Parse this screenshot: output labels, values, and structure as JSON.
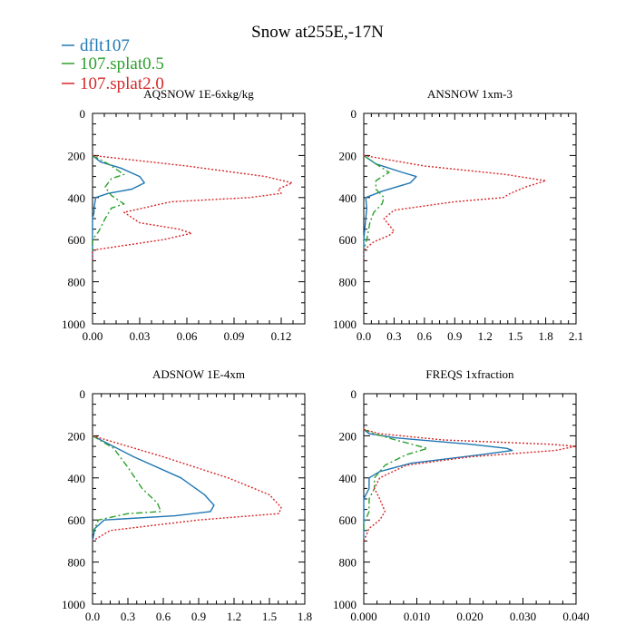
{
  "title": "Snow at255E,-17N",
  "colors": {
    "dflt107": "#1f77b4",
    "splat05": "#2ca02c",
    "splat20": "#d62728",
    "axes": "#000000"
  },
  "legend": [
    {
      "label": "dflt107",
      "color": "#1f77b4",
      "style": "solid"
    },
    {
      "label": "107.splat0.5",
      "color": "#2ca02c",
      "style": "dashdot"
    },
    {
      "label": "107.splat2.0",
      "color": "#d62728",
      "style": "dotted"
    }
  ],
  "chart_data": [
    {
      "type": "line",
      "title": "AQSNOW  1E-6xkg/kg",
      "xlim": [
        0,
        0.135
      ],
      "ylim": [
        1000,
        0
      ],
      "xticks": [
        "0.00",
        "0.03",
        "0.06",
        "0.09",
        "0.12"
      ],
      "xtick_values": [
        0,
        0.03,
        0.06,
        0.09,
        0.12
      ],
      "yticks": [
        "0",
        "200",
        "400",
        "600",
        "800",
        "1000"
      ],
      "ytick_values": [
        0,
        200,
        400,
        600,
        800,
        1000
      ],
      "series": [
        {
          "name": "dflt107",
          "pressure": [
            200,
            230,
            260,
            300,
            330,
            360,
            380,
            400,
            450,
            470,
            500,
            600,
            700
          ],
          "values": [
            0,
            0.005,
            0.018,
            0.03,
            0.033,
            0.025,
            0.01,
            0.002,
            0.001,
            0.001,
            0,
            0,
            0
          ]
        },
        {
          "name": "107.splat0.5",
          "pressure": [
            200,
            240,
            290,
            310,
            350,
            390,
            430,
            450,
            500,
            560,
            600,
            650
          ],
          "values": [
            0,
            0.01,
            0.02,
            0.012,
            0.008,
            0.012,
            0.02,
            0.012,
            0.008,
            0.004,
            0,
            0
          ]
        },
        {
          "name": "107.splat2.0",
          "pressure": [
            200,
            250,
            300,
            330,
            360,
            380,
            400,
            420,
            470,
            520,
            550,
            570,
            600,
            650,
            700
          ],
          "values": [
            0,
            0.06,
            0.11,
            0.127,
            0.118,
            0.12,
            0.1,
            0.05,
            0.02,
            0.03,
            0.055,
            0.063,
            0.045,
            0,
            0
          ]
        }
      ]
    },
    {
      "type": "line",
      "title": "ANSNOW  1xm-3",
      "xlim": [
        0,
        2.1
      ],
      "ylim": [
        1000,
        0
      ],
      "xticks": [
        "0.0",
        "0.3",
        "0.6",
        "0.9",
        "1.2",
        "1.5",
        "1.8",
        "2.1"
      ],
      "xtick_values": [
        0,
        0.3,
        0.6,
        0.9,
        1.2,
        1.5,
        1.8,
        2.1
      ],
      "yticks": [
        "0",
        "200",
        "400",
        "600",
        "800",
        "1000"
      ],
      "ytick_values": [
        0,
        200,
        400,
        600,
        800,
        1000
      ],
      "series": [
        {
          "name": "dflt107",
          "pressure": [
            200,
            240,
            280,
            300,
            330,
            370,
            400,
            450,
            500,
            600,
            700
          ],
          "values": [
            0,
            0.12,
            0.38,
            0.52,
            0.46,
            0.18,
            0.02,
            0.03,
            0.02,
            0,
            0
          ]
        },
        {
          "name": "107.splat0.5",
          "pressure": [
            200,
            240,
            280,
            320,
            360,
            400,
            430,
            470,
            520,
            600,
            650
          ],
          "values": [
            0,
            0.12,
            0.25,
            0.12,
            0.12,
            0.2,
            0.18,
            0.1,
            0.06,
            0.03,
            0
          ]
        },
        {
          "name": "107.splat2.0",
          "pressure": [
            200,
            250,
            290,
            320,
            350,
            380,
            400,
            420,
            460,
            500,
            560,
            580,
            610,
            650,
            700
          ],
          "values": [
            0,
            0.6,
            1.4,
            1.8,
            1.6,
            1.45,
            1.38,
            0.9,
            0.3,
            0.2,
            0.3,
            0.25,
            0.1,
            0,
            0
          ]
        }
      ]
    },
    {
      "type": "line",
      "title": "ADSNOW  1E-4xm",
      "xlim": [
        0,
        1.8
      ],
      "ylim": [
        1000,
        0
      ],
      "xticks": [
        "0.0",
        "0.3",
        "0.6",
        "0.9",
        "1.2",
        "1.5",
        "1.8"
      ],
      "xtick_values": [
        0,
        0.3,
        0.6,
        0.9,
        1.2,
        1.5,
        1.8
      ],
      "yticks": [
        "0",
        "200",
        "400",
        "600",
        "800",
        "1000"
      ],
      "ytick_values": [
        0,
        200,
        400,
        600,
        800,
        1000
      ],
      "series": [
        {
          "name": "dflt107",
          "pressure": [
            200,
            300,
            400,
            480,
            530,
            560,
            580,
            600,
            640,
            700
          ],
          "values": [
            0,
            0.35,
            0.75,
            0.95,
            1.03,
            1.0,
            0.7,
            0.1,
            0.02,
            0
          ]
        },
        {
          "name": "107.splat0.5",
          "pressure": [
            200,
            260,
            350,
            450,
            520,
            560,
            570,
            600,
            640,
            660
          ],
          "values": [
            0,
            0.18,
            0.3,
            0.42,
            0.55,
            0.58,
            0.3,
            0.05,
            0.02,
            0
          ]
        },
        {
          "name": "107.splat2.0",
          "pressure": [
            200,
            300,
            400,
            480,
            540,
            570,
            600,
            650,
            700
          ],
          "values": [
            0,
            0.6,
            1.15,
            1.5,
            1.6,
            1.58,
            0.9,
            0.15,
            0
          ]
        }
      ]
    },
    {
      "type": "line",
      "title": "FREQS  1xfraction",
      "xlim": [
        0,
        0.04
      ],
      "ylim": [
        1000,
        0
      ],
      "xticks": [
        "0.000",
        "0.010",
        "0.020",
        "0.030",
        "0.040"
      ],
      "xtick_values": [
        0,
        0.01,
        0.02,
        0.03,
        0.04
      ],
      "yticks": [
        "0",
        "200",
        "400",
        "600",
        "800",
        "1000"
      ],
      "ytick_values": [
        0,
        200,
        400,
        600,
        800,
        1000
      ],
      "series": [
        {
          "name": "dflt107",
          "pressure": [
            170,
            190,
            210,
            240,
            260,
            270,
            290,
            330,
            370,
            400,
            450,
            500,
            600,
            700
          ],
          "values": [
            0,
            0.001,
            0.006,
            0.02,
            0.027,
            0.028,
            0.022,
            0.009,
            0.003,
            0.001,
            0.001,
            0,
            0,
            0
          ]
        },
        {
          "name": "107.splat0.5",
          "pressure": [
            170,
            190,
            220,
            260,
            290,
            340,
            400,
            450,
            500,
            560,
            620,
            660
          ],
          "values": [
            0,
            0.002,
            0.006,
            0.012,
            0.008,
            0.004,
            0.002,
            0.002,
            0.001,
            0.001,
            0,
            0
          ]
        },
        {
          "name": "107.splat2.0",
          "pressure": [
            170,
            190,
            220,
            240,
            250,
            270,
            300,
            340,
            400,
            450,
            500,
            560,
            600,
            640,
            700
          ],
          "values": [
            0,
            0.003,
            0.015,
            0.035,
            0.04,
            0.036,
            0.02,
            0.008,
            0.003,
            0.002,
            0.003,
            0.004,
            0.003,
            0.001,
            0
          ]
        }
      ]
    }
  ]
}
